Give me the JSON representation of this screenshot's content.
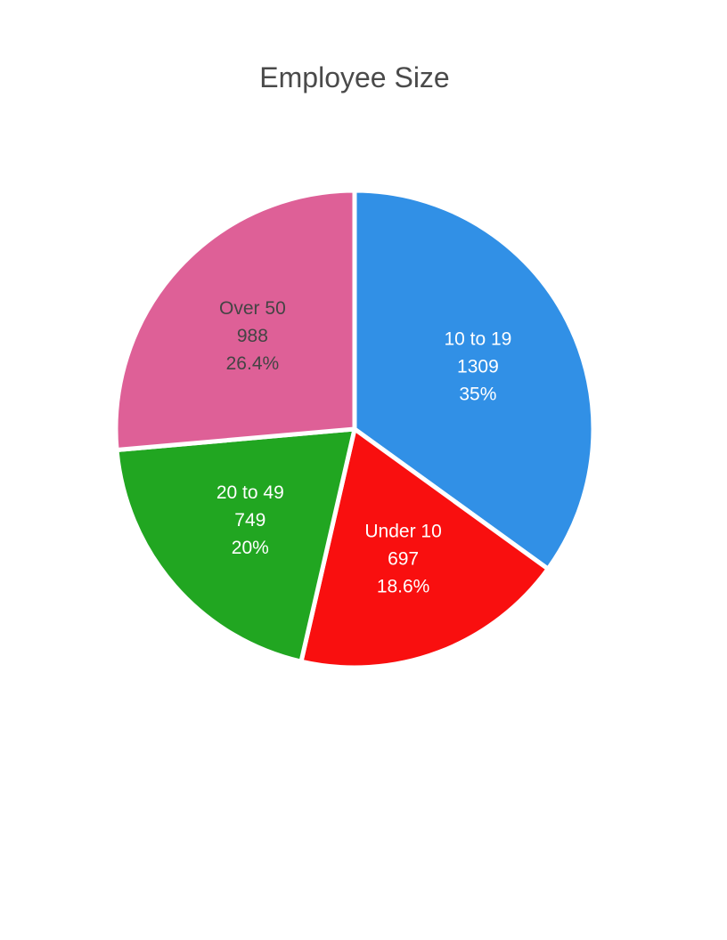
{
  "chart_data": {
    "type": "pie",
    "title": "Employee Size",
    "colors": {
      "slice_stroke": "#ffffff"
    },
    "slices": [
      {
        "label": "10 to 19",
        "value": 1309,
        "percent_label": "35%",
        "color": "#3190E6",
        "text_color": "#ffffff"
      },
      {
        "label": "Under 10",
        "value": 697,
        "percent_label": "18.6%",
        "color": "#F90F0F",
        "text_color": "#ffffff"
      },
      {
        "label": "20 to 49",
        "value": 749,
        "percent_label": "20%",
        "color": "#21A621",
        "text_color": "#ffffff"
      },
      {
        "label": "Over 50",
        "value": 988,
        "percent_label": "26.4%",
        "color": "#DE6097",
        "text_color": "#444444"
      }
    ]
  }
}
